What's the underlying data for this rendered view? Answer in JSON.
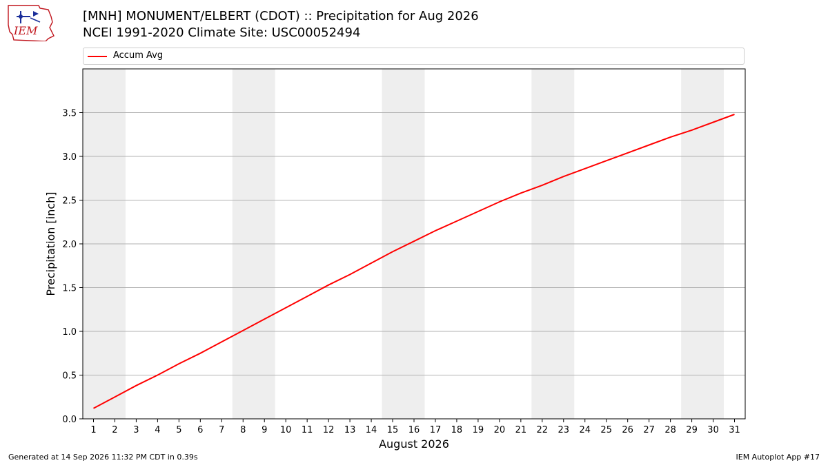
{
  "header": {
    "title_line1": "[MNH] MONUMENT/ELBERT (CDOT) :: Precipitation for Aug 2026",
    "title_line2": "NCEI 1991-2020 Climate Site: USC00052494",
    "logo_text": "IEM"
  },
  "footer": {
    "generated": "Generated at 14 Sep 2026 11:32 PM CDT in 0.39s",
    "app": "IEM Autoplot App #17"
  },
  "colors": {
    "series": "#ff0000",
    "weekend_shade": "#eeeeee",
    "grid": "#b0b0b0",
    "logo_red": "#c0141c",
    "logo_blue": "#1a2e9a"
  },
  "chart_data": {
    "type": "line",
    "xlabel": "August 2026",
    "ylabel": "Precipitation [inch]",
    "xlim": [
      0.5,
      31.5
    ],
    "ylim": [
      0,
      4.0
    ],
    "yticks": [
      0.0,
      0.5,
      1.0,
      1.5,
      2.0,
      2.5,
      3.0,
      3.5
    ],
    "ytick_labels": [
      "0.0",
      "0.5",
      "1.0",
      "1.5",
      "2.0",
      "2.5",
      "3.0",
      "3.5"
    ],
    "xticks": [
      1,
      2,
      3,
      4,
      5,
      6,
      7,
      8,
      9,
      10,
      11,
      12,
      13,
      14,
      15,
      16,
      17,
      18,
      19,
      20,
      21,
      22,
      23,
      24,
      25,
      26,
      27,
      28,
      29,
      30,
      31
    ],
    "grid": "horizontal",
    "legend_position": "top",
    "weekend_bands": [
      [
        0.5,
        2.5
      ],
      [
        7.5,
        9.5
      ],
      [
        14.5,
        16.5
      ],
      [
        21.5,
        23.5
      ],
      [
        28.5,
        30.5
      ]
    ],
    "series": [
      {
        "name": "Accum Avg",
        "x": [
          1,
          2,
          3,
          4,
          5,
          6,
          7,
          8,
          9,
          10,
          11,
          12,
          13,
          14,
          15,
          16,
          17,
          18,
          19,
          20,
          21,
          22,
          23,
          24,
          25,
          26,
          27,
          28,
          29,
          30,
          31
        ],
        "values": [
          0.12,
          0.25,
          0.38,
          0.5,
          0.63,
          0.75,
          0.88,
          1.01,
          1.14,
          1.27,
          1.4,
          1.53,
          1.65,
          1.78,
          1.91,
          2.03,
          2.15,
          2.26,
          2.37,
          2.48,
          2.58,
          2.67,
          2.77,
          2.86,
          2.95,
          3.04,
          3.13,
          3.22,
          3.3,
          3.39,
          3.48
        ]
      }
    ]
  }
}
